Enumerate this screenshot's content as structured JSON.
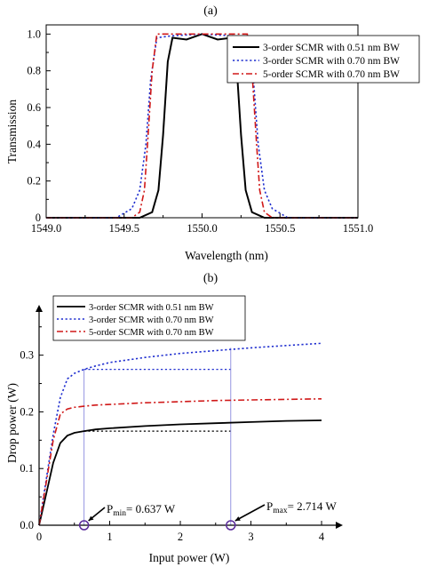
{
  "chart_data": [
    {
      "type": "line",
      "panel_label": "(a)",
      "xlabel": "Wavelength (nm)",
      "ylabel": "Transmission",
      "xlim": [
        1549.0,
        1551.0
      ],
      "ylim": [
        0,
        1.05
      ],
      "x_ticks": [
        "1549.0",
        "1549.5",
        "1550.0",
        "1550.5",
        "1551.0"
      ],
      "y_ticks": [
        "0",
        "0.2",
        "0.4",
        "0.6",
        "0.8",
        "1.0"
      ],
      "legend_position": "top-right",
      "series": [
        {
          "name": "3-order SCMR with 0.51 nm BW",
          "color": "#000000",
          "style": "solid",
          "x": [
            1549.0,
            1549.6,
            1549.68,
            1549.72,
            1549.75,
            1549.78,
            1549.81,
            1549.9,
            1550.0,
            1550.1,
            1550.19,
            1550.22,
            1550.25,
            1550.28,
            1550.32,
            1550.4,
            1551.0
          ],
          "y": [
            0.0,
            0.0,
            0.03,
            0.15,
            0.45,
            0.85,
            0.98,
            0.97,
            1.0,
            0.97,
            0.98,
            0.85,
            0.45,
            0.15,
            0.03,
            0.0,
            0.0
          ]
        },
        {
          "name": "3-order SCMR with 0.70 nm BW",
          "color": "#1f2ecf",
          "style": "dotted",
          "x": [
            1549.0,
            1549.45,
            1549.55,
            1549.6,
            1549.64,
            1549.67,
            1549.71,
            1549.8,
            1550.0,
            1550.2,
            1550.29,
            1550.33,
            1550.36,
            1550.4,
            1550.45,
            1550.55,
            1551.0
          ],
          "y": [
            0.0,
            0.0,
            0.05,
            0.15,
            0.4,
            0.75,
            0.98,
            0.99,
            1.0,
            0.99,
            0.98,
            0.75,
            0.4,
            0.15,
            0.05,
            0.0,
            0.0
          ]
        },
        {
          "name": "5-order SCMR with 0.70 nm BW",
          "color": "#d01818",
          "style": "dashdot",
          "x": [
            1549.0,
            1549.55,
            1549.6,
            1549.63,
            1549.65,
            1549.68,
            1549.71,
            1549.8,
            1550.0,
            1550.2,
            1550.29,
            1550.32,
            1550.35,
            1550.37,
            1550.4,
            1550.45,
            1551.0
          ],
          "y": [
            0.0,
            0.0,
            0.03,
            0.15,
            0.4,
            0.8,
            1.0,
            1.0,
            1.0,
            1.0,
            1.0,
            0.8,
            0.4,
            0.15,
            0.03,
            0.0,
            0.0
          ]
        }
      ]
    },
    {
      "type": "line",
      "panel_label": "(b)",
      "xlabel": "Input power (W)",
      "ylabel": "Drop power (W)",
      "xlim": [
        0,
        4.1
      ],
      "ylim": [
        0,
        0.37
      ],
      "x_ticks": [
        "0",
        "1",
        "2",
        "3",
        "4"
      ],
      "y_ticks": [
        "0.0",
        "0.1",
        "0.2",
        "0.3"
      ],
      "legend_position": "top-left",
      "series": [
        {
          "name": "3-order SCMR with 0.51 nm BW",
          "color": "#000000",
          "style": "solid",
          "x": [
            0,
            0.1,
            0.2,
            0.3,
            0.4,
            0.5,
            0.637,
            0.8,
            1.0,
            1.5,
            2.0,
            2.5,
            3.0,
            3.5,
            4.0
          ],
          "y": [
            0.0,
            0.055,
            0.11,
            0.145,
            0.158,
            0.163,
            0.166,
            0.169,
            0.171,
            0.175,
            0.178,
            0.18,
            0.182,
            0.184,
            0.185
          ]
        },
        {
          "name": "3-order SCMR with 0.70 nm BW",
          "color": "#1f2ecf",
          "style": "dotted",
          "x": [
            0,
            0.1,
            0.2,
            0.3,
            0.4,
            0.5,
            0.637,
            0.8,
            1.0,
            1.5,
            2.0,
            2.5,
            3.0,
            3.5,
            4.0
          ],
          "y": [
            0.0,
            0.08,
            0.16,
            0.225,
            0.258,
            0.268,
            0.275,
            0.281,
            0.287,
            0.296,
            0.303,
            0.308,
            0.313,
            0.317,
            0.321
          ]
        },
        {
          "name": "5-order SCMR with 0.70 nm BW",
          "color": "#d01818",
          "style": "dashdot",
          "x": [
            0,
            0.1,
            0.2,
            0.3,
            0.4,
            0.5,
            0.637,
            0.8,
            1.0,
            1.5,
            2.0,
            2.5,
            3.0,
            3.5,
            4.0
          ],
          "y": [
            0.0,
            0.075,
            0.15,
            0.196,
            0.205,
            0.208,
            0.21,
            0.212,
            0.213,
            0.216,
            0.218,
            0.22,
            0.221,
            0.222,
            0.223
          ]
        }
      ],
      "reference_lines": [
        {
          "color": "#000000",
          "style": "dotted",
          "x": [
            0.637,
            2.714
          ],
          "y": [
            0.166,
            0.166
          ]
        },
        {
          "color": "#1f2ecf",
          "style": "dotted",
          "x": [
            0.637,
            2.714
          ],
          "y": [
            0.275,
            0.275
          ]
        },
        {
          "color": "#8888dd",
          "style": "solid",
          "x": [
            0.637,
            0.637
          ],
          "y": [
            0,
            0.275
          ]
        },
        {
          "color": "#8888dd",
          "style": "solid",
          "x": [
            2.714,
            2.714
          ],
          "y": [
            0,
            0.313
          ]
        }
      ],
      "annotations": {
        "pmin": {
          "x": 0.637,
          "y": 0,
          "text_main": "P",
          "text_sub": "min",
          "text_rest": "= 0.637 W"
        },
        "pmax": {
          "x": 2.714,
          "y": 0,
          "text_main": "P",
          "text_sub": "max",
          "text_rest": "= 2.714 W"
        }
      }
    }
  ]
}
